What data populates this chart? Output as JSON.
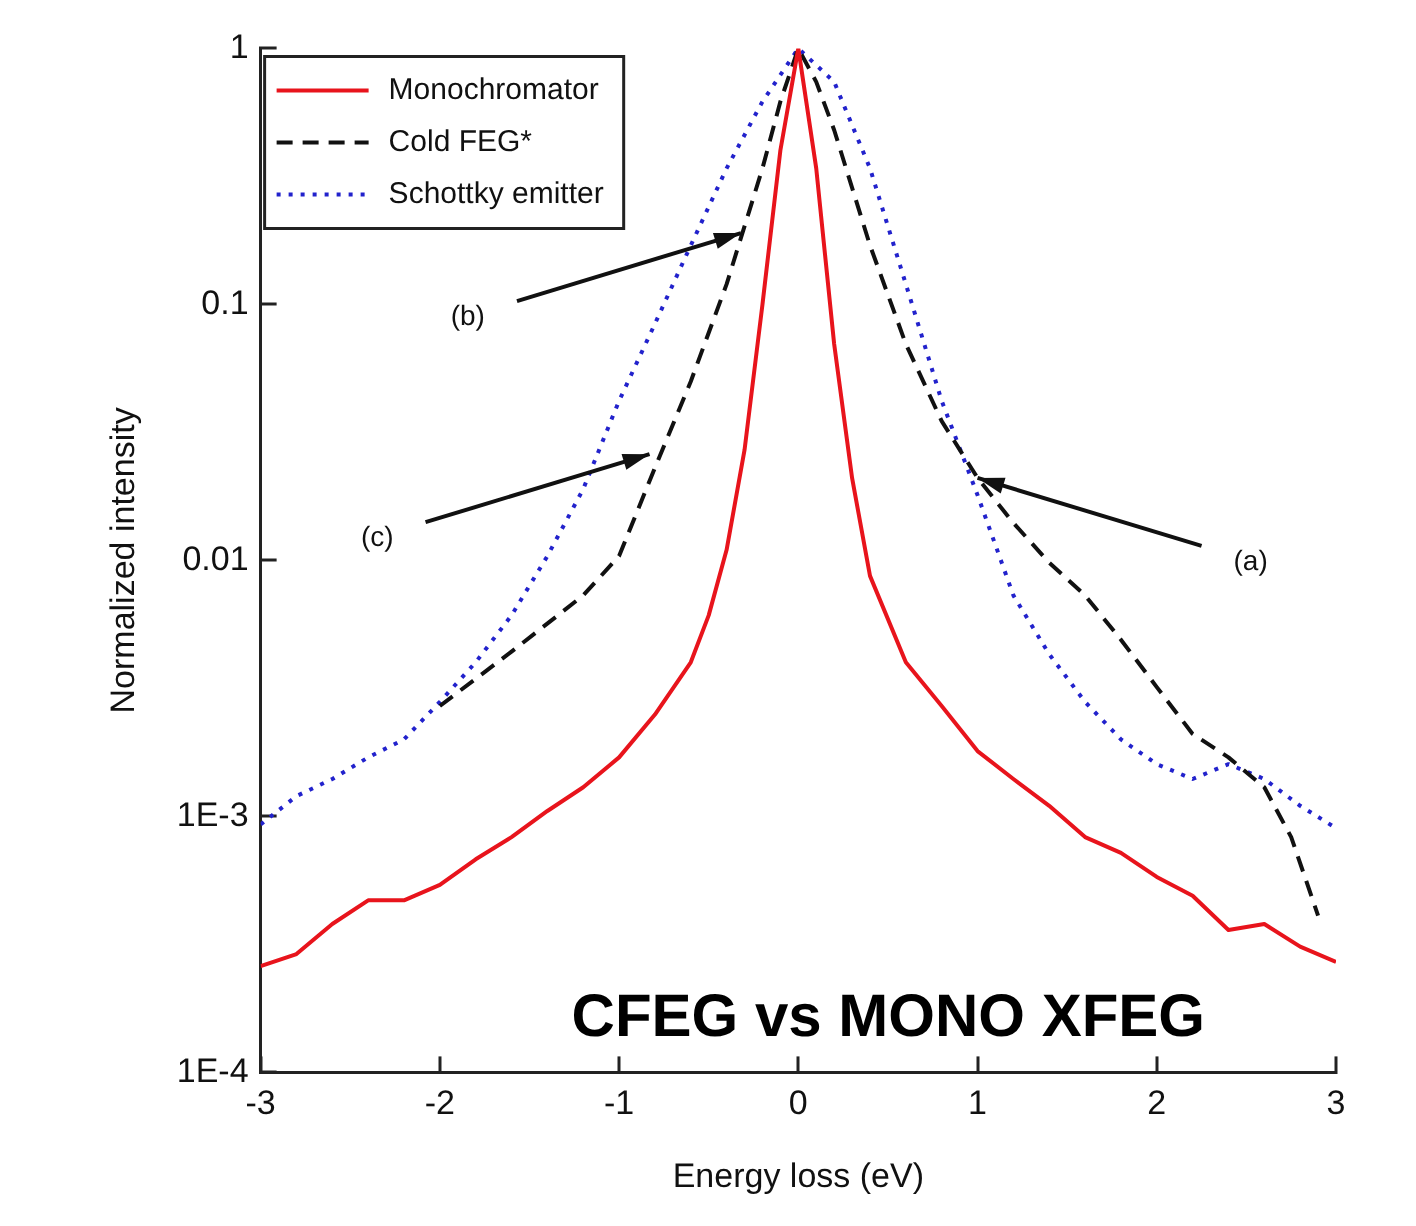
{
  "chart_data": {
    "type": "line",
    "xlabel": "Energy loss (eV)",
    "ylabel": "Normalized intensity",
    "xlim": [
      -3,
      3
    ],
    "xticks": [
      -3,
      -2,
      -1,
      0,
      1,
      2,
      3
    ],
    "ylim": [
      0.0001,
      1
    ],
    "yticks": [
      {
        "value": 0.0001,
        "label": "1E-4"
      },
      {
        "value": 0.001,
        "label": "1E-3"
      },
      0.01,
      0.1,
      1
    ],
    "log": "y",
    "grid": false,
    "legend": "top left",
    "marker": "none",
    "series": [
      {
        "name": "Monochromator",
        "color": "#e8141c",
        "line_style": "solid",
        "x": [
          -3,
          -2.8,
          -2.6,
          -2.4,
          -2.2,
          -2,
          -1.8,
          -1.6,
          -1.4,
          -1.2,
          -1,
          -0.8,
          -0.6,
          -0.5,
          -0.4,
          -0.3,
          -0.2,
          -0.1,
          0,
          0.1,
          0.2,
          0.3,
          0.4,
          0.6,
          0.8,
          1,
          1.2,
          1.4,
          1.6,
          1.8,
          2,
          2.2,
          2.4,
          2.6,
          2.8,
          3
        ],
        "values": [
          0.00026,
          0.00029,
          0.00038,
          0.00047,
          0.00047,
          0.00054,
          0.00068,
          0.00083,
          0.00105,
          0.0013,
          0.0017,
          0.0025,
          0.004,
          0.0061,
          0.011,
          0.027,
          0.1,
          0.4,
          1,
          0.34,
          0.07,
          0.021,
          0.0087,
          0.004,
          0.0027,
          0.0018,
          0.0014,
          0.0011,
          0.00083,
          0.00072,
          0.00058,
          0.00049,
          0.00036,
          0.00038,
          0.00031,
          0.00027
        ]
      },
      {
        "name": "Cold FEG*",
        "color": "#111111",
        "line_style": "dashed",
        "x": [
          -2,
          -1.6,
          -1.2,
          -1,
          -0.8,
          -0.6,
          -0.4,
          -0.2,
          -0.1,
          0,
          0.1,
          0.2,
          0.4,
          0.6,
          0.8,
          1,
          1.2,
          1.4,
          1.6,
          1.8,
          2,
          2.2,
          2.4,
          2.6,
          2.75,
          2.9
        ],
        "values": [
          0.0027,
          0.0044,
          0.0073,
          0.0104,
          0.023,
          0.05,
          0.12,
          0.34,
          0.62,
          1,
          0.74,
          0.48,
          0.17,
          0.07,
          0.035,
          0.021,
          0.014,
          0.0098,
          0.0073,
          0.0049,
          0.0032,
          0.0021,
          0.0017,
          0.0013,
          0.00083,
          0.00041
        ]
      },
      {
        "name": "Schottky emitter",
        "color": "#2222cc",
        "line_style": "dotted",
        "x": [
          -3,
          -2.8,
          -2.6,
          -2.4,
          -2.2,
          -2,
          -1.8,
          -1.6,
          -1.4,
          -1.2,
          -1,
          -0.8,
          -0.6,
          -0.4,
          -0.2,
          0,
          0.2,
          0.4,
          0.6,
          0.8,
          1,
          1.2,
          1.4,
          1.6,
          1.8,
          2,
          2.2,
          2.4,
          2.6,
          2.8,
          3
        ],
        "values": [
          0.00093,
          0.0012,
          0.0014,
          0.0017,
          0.002,
          0.0028,
          0.004,
          0.0061,
          0.0104,
          0.019,
          0.042,
          0.084,
          0.17,
          0.34,
          0.62,
          1,
          0.74,
          0.34,
          0.12,
          0.042,
          0.018,
          0.0073,
          0.0043,
          0.0028,
          0.002,
          0.0016,
          0.0014,
          0.0016,
          0.0014,
          0.0011,
          0.0009
        ]
      }
    ],
    "annotations": [
      {
        "text": "(a)",
        "x": 1,
        "y": 0.021
      },
      {
        "text": "(b)",
        "x": -0.32,
        "y": 0.19
      },
      {
        "text": "(c)",
        "x": -0.83,
        "y": 0.026
      },
      "CFEG vs MONO XFEG"
    ]
  }
}
